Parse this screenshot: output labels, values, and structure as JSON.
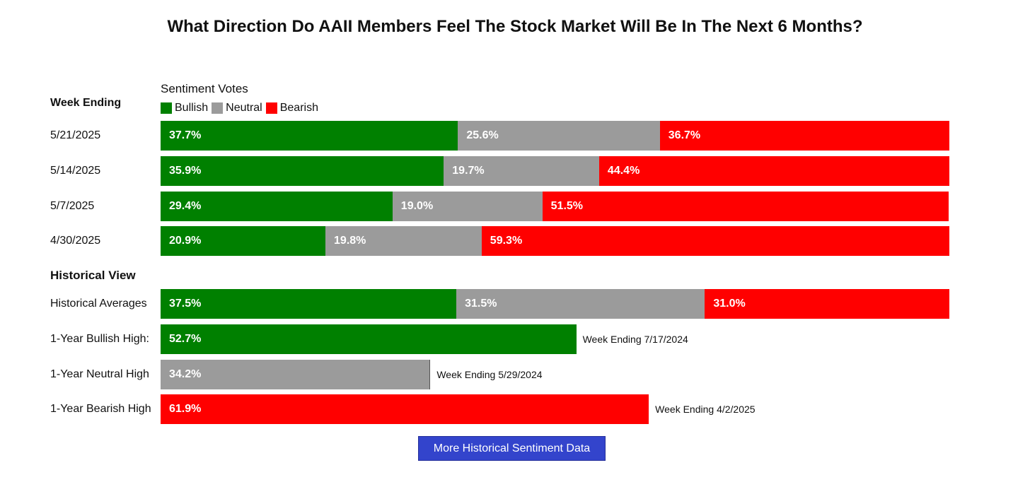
{
  "chart_data": {
    "type": "bar",
    "title": "What Direction Do AAII Members Feel The Stock Market Will Be In The Next 6 Months?",
    "subtitle": "Sentiment Votes",
    "legend": {
      "items": [
        {
          "name": "Bullish",
          "color": "#008000"
        },
        {
          "name": "Neutral",
          "color": "#9b9b9b"
        },
        {
          "name": "Bearish",
          "color": "#ff0000"
        }
      ]
    },
    "week_section_label": "Week Ending",
    "weeks": [
      {
        "label": "5/21/2025",
        "bullish": 37.7,
        "neutral": 25.6,
        "bearish": 36.7,
        "bullish_text": "37.7%",
        "neutral_text": "25.6%",
        "bearish_text": "36.7%"
      },
      {
        "label": "5/14/2025",
        "bullish": 35.9,
        "neutral": 19.7,
        "bearish": 44.4,
        "bullish_text": "35.9%",
        "neutral_text": "19.7%",
        "bearish_text": "44.4%"
      },
      {
        "label": "5/7/2025",
        "bullish": 29.4,
        "neutral": 19.0,
        "bearish": 51.5,
        "bullish_text": "29.4%",
        "neutral_text": "19.0%",
        "bearish_text": "51.5%"
      },
      {
        "label": "4/30/2025",
        "bullish": 20.9,
        "neutral": 19.8,
        "bearish": 59.3,
        "bullish_text": "20.9%",
        "neutral_text": "19.8%",
        "bearish_text": "59.3%"
      }
    ],
    "historical_section_label": "Historical View",
    "historical_average": {
      "label": "Historical Averages",
      "bullish": 37.5,
      "neutral": 31.5,
      "bearish": 31.0,
      "bullish_text": "37.5%",
      "neutral_text": "31.5%",
      "bearish_text": "31.0%"
    },
    "highs": [
      {
        "label": "1-Year Bullish High:",
        "series": "bullish",
        "value": 52.7,
        "value_text": "52.7%",
        "note": "Week Ending 7/17/2024"
      },
      {
        "label": "1-Year Neutral High",
        "series": "neutral",
        "value": 34.2,
        "value_text": "34.2%",
        "note": "Week Ending 5/29/2024"
      },
      {
        "label": "1-Year Bearish High",
        "series": "bearish",
        "value": 61.9,
        "value_text": "61.9%",
        "note": "Week Ending 4/2/2025"
      }
    ],
    "xlim": [
      0,
      100
    ]
  },
  "button": {
    "label": "More Historical Sentiment Data"
  }
}
